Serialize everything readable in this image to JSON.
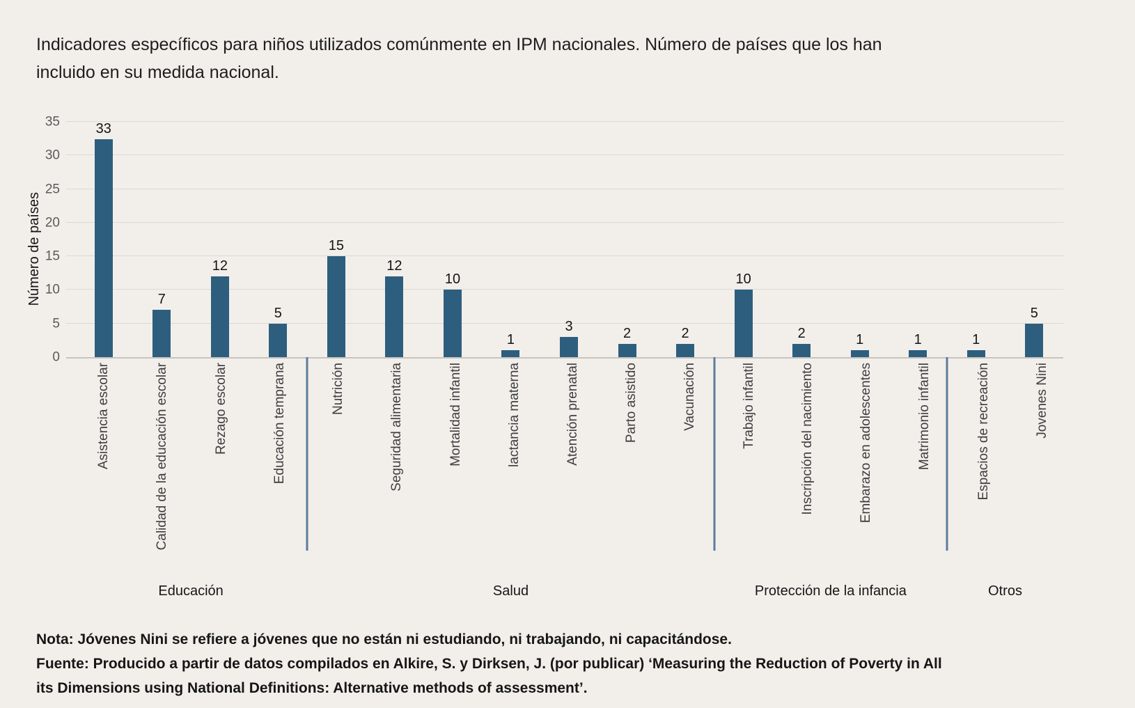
{
  "title_line1": "Indicadores específicos para niños utilizados comúnmente en IPM nacionales. Número de países que los han",
  "title_line2": "incluido en su medida nacional.",
  "colors": {
    "background": "#f2efeb",
    "bar": "#2d5e7e",
    "separator": "#5d7c9b",
    "gridline": "#dcd9d5"
  },
  "chart_data": {
    "type": "bar",
    "title": "Indicadores específicos para niños utilizados comúnmente en IPM nacionales. Número de países que los han incluido en su medida nacional.",
    "xlabel": "",
    "ylabel": "Número de países",
    "ylim": [
      0,
      35
    ],
    "yticks": [
      0,
      5,
      10,
      15,
      20,
      25,
      30,
      35
    ],
    "grid": "horizontal",
    "legend": "none",
    "bar_color": "#2d5e7e",
    "groups": [
      {
        "label": "Educación",
        "bars": [
          {
            "label": "Asistencia escolar",
            "value": 33
          },
          {
            "label": "Calidad de la educación escolar",
            "value": 7
          },
          {
            "label": "Rezago escolar",
            "value": 12
          },
          {
            "label": "Educación temprana",
            "value": 5
          }
        ]
      },
      {
        "label": "Salud",
        "bars": [
          {
            "label": "Nutrición",
            "value": 15
          },
          {
            "label": "Seguridad alimentaria",
            "value": 12
          },
          {
            "label": "Mortalidad infantil",
            "value": 10
          },
          {
            "label": "lactancia materna",
            "value": 1
          },
          {
            "label": "Atención prenatal",
            "value": 3
          },
          {
            "label": "Parto asistido",
            "value": 2
          },
          {
            "label": "Vacunación",
            "value": 2
          }
        ]
      },
      {
        "label": "Protección de la infancia",
        "bars": [
          {
            "label": "Trabajo infantil",
            "value": 10
          },
          {
            "label": "Inscripción del nacimiento",
            "value": 2
          },
          {
            "label": "Embarazo en adolescentes",
            "value": 1
          },
          {
            "label": "Matrimonio infantil",
            "value": 1
          }
        ]
      },
      {
        "label": "Otros",
        "bars": [
          {
            "label": "Espacios de recreación",
            "value": 1
          },
          {
            "label": "Jovenes Nini",
            "value": 5
          }
        ]
      }
    ]
  },
  "notes": {
    "nota": "Nota: Jóvenes Nini se refiere a jóvenes que no están ni estudiando, ni trabajando, ni capacitándose.",
    "fuente_line1": "Fuente: Producido a partir de datos compilados en Alkire, S. y Dirksen, J. (por publicar) ‘Measuring the Reduction of Poverty in All",
    "fuente_line2": "its Dimensions using National Definitions: Alternative methods of assessment’."
  }
}
